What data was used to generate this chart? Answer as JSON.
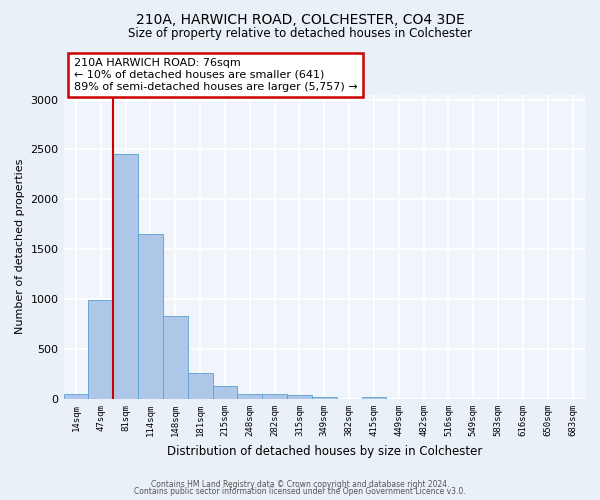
{
  "title": "210A, HARWICH ROAD, COLCHESTER, CO4 3DE",
  "subtitle": "Size of property relative to detached houses in Colchester",
  "xlabel": "Distribution of detached houses by size in Colchester",
  "ylabel": "Number of detached properties",
  "bar_labels": [
    "14sqm",
    "47sqm",
    "81sqm",
    "114sqm",
    "148sqm",
    "181sqm",
    "215sqm",
    "248sqm",
    "282sqm",
    "315sqm",
    "349sqm",
    "382sqm",
    "415sqm",
    "449sqm",
    "482sqm",
    "516sqm",
    "549sqm",
    "583sqm",
    "616sqm",
    "650sqm",
    "683sqm"
  ],
  "bar_values": [
    55,
    990,
    2450,
    1650,
    830,
    265,
    135,
    55,
    50,
    40,
    20,
    0,
    20,
    0,
    0,
    0,
    0,
    0,
    0,
    0,
    0
  ],
  "bar_color": "#aec6e8",
  "bar_edge_color": "#5a9fd4",
  "vline_color": "#cc0000",
  "annotation_text": "210A HARWICH ROAD: 76sqm\n← 10% of detached houses are smaller (641)\n89% of semi-detached houses are larger (5,757) →",
  "annotation_box_color": "#cc0000",
  "ylim": [
    0,
    3050
  ],
  "yticks": [
    0,
    500,
    1000,
    1500,
    2000,
    2500,
    3000
  ],
  "footer1": "Contains HM Land Registry data © Crown copyright and database right 2024.",
  "footer2": "Contains public sector information licensed under the Open Government Licence v3.0.",
  "bg_color": "#eaf0f8",
  "plot_bg_color": "#f0f5fc",
  "grid_color": "#ffffff"
}
